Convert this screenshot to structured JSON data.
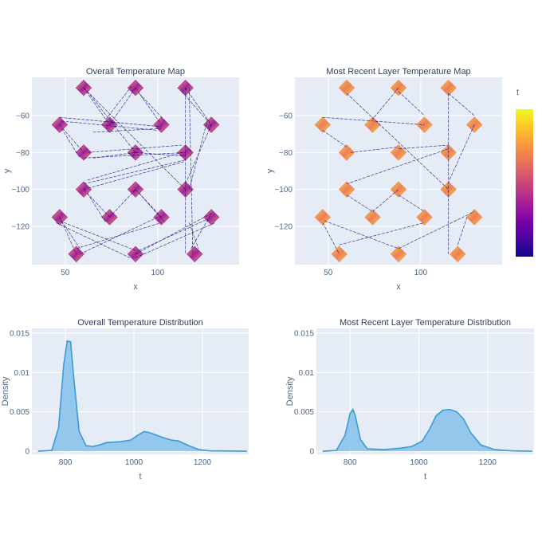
{
  "colors": {
    "plot_bg": "#e5ecf6",
    "grid": "#ffffff",
    "line": "#0d0887",
    "kde": "#3a9bd6",
    "kde_fill": "#85c1e9",
    "colorscale": [
      "#0d0887",
      "#46039f",
      "#7201a8",
      "#9c179e",
      "#bd3786",
      "#d8576b",
      "#ed7953",
      "#fb9f3a",
      "#fdca26",
      "#f0f921"
    ]
  },
  "chart_data": [
    {
      "type": "scatter",
      "title": "Overall Temperature Map",
      "xlabel": "x",
      "ylabel": "y",
      "xlim": [
        32,
        144
      ],
      "ylim": [
        -140.7,
        -39.3
      ],
      "xticks": [
        50,
        100
      ],
      "xtick_labels": [
        "50",
        "100"
      ],
      "yticks": [
        -60,
        -80,
        -100,
        -120
      ],
      "ytick_labels": [
        "−60",
        "−80",
        "−100",
        "−120"
      ],
      "grid": true,
      "color_range": [
        "#9c179e",
        "#fb9f3a"
      ],
      "pads": [
        [
          60,
          -45
        ],
        [
          88,
          -45
        ],
        [
          115,
          -45
        ],
        [
          47,
          -65
        ],
        [
          74,
          -65
        ],
        [
          102,
          -65
        ],
        [
          129,
          -65
        ],
        [
          60,
          -80
        ],
        [
          88,
          -80
        ],
        [
          115,
          -80
        ],
        [
          60,
          -100
        ],
        [
          88,
          -100
        ],
        [
          115,
          -100
        ],
        [
          47,
          -115
        ],
        [
          74,
          -115
        ],
        [
          102,
          -115
        ],
        [
          129,
          -115
        ],
        [
          56,
          -135
        ],
        [
          88,
          -135
        ],
        [
          120,
          -135
        ]
      ],
      "segments": [
        [
          60,
          -45,
          74,
          -65
        ],
        [
          60,
          -45,
          115,
          -100
        ],
        [
          62,
          -47,
          88,
          -80
        ],
        [
          88,
          -45,
          74,
          -65
        ],
        [
          86,
          -44,
          72,
          -62
        ],
        [
          88,
          -45,
          102,
          -65
        ],
        [
          90,
          -48,
          104,
          -63
        ],
        [
          115,
          -45,
          115,
          -135
        ],
        [
          117,
          -45,
          119,
          -135
        ],
        [
          115,
          -45,
          129,
          -65
        ],
        [
          113,
          -47,
          127,
          -63
        ],
        [
          47,
          -61,
          102,
          -66
        ],
        [
          48,
          -63,
          100,
          -68
        ],
        [
          65,
          -69,
          102,
          -67
        ],
        [
          47,
          -65,
          60,
          -80
        ],
        [
          48,
          -67,
          58,
          -83
        ],
        [
          60,
          -83,
          115,
          -80
        ],
        [
          62,
          -80,
          113,
          -76
        ],
        [
          65,
          -83,
          88,
          -80
        ],
        [
          88,
          -80,
          115,
          -82
        ],
        [
          60,
          -97,
          115,
          -84
        ],
        [
          62,
          -95,
          113,
          -80
        ],
        [
          60,
          -100,
          114,
          -85
        ],
        [
          129,
          -65,
          115,
          -97
        ],
        [
          127,
          -62,
          117,
          -100
        ],
        [
          60,
          -100,
          74,
          -115
        ],
        [
          62,
          -102,
          72,
          -118
        ],
        [
          88,
          -100,
          74,
          -115
        ],
        [
          88,
          -100,
          102,
          -115
        ],
        [
          90,
          -102,
          104,
          -118
        ],
        [
          47,
          -115,
          56,
          -135
        ],
        [
          48,
          -117,
          58,
          -132
        ],
        [
          47,
          -117,
          88,
          -133
        ],
        [
          45,
          -118,
          85,
          -137
        ],
        [
          56,
          -132,
          102,
          -118
        ],
        [
          58,
          -135,
          100,
          -115
        ],
        [
          88,
          -135,
          129,
          -113
        ],
        [
          90,
          -133,
          127,
          -116
        ],
        [
          88,
          -137,
          131,
          -118
        ],
        [
          118,
          -132,
          129,
          -113
        ],
        [
          117,
          -118,
          122,
          -132
        ]
      ]
    },
    {
      "type": "scatter",
      "title": "Most Recent Layer Temperature Map",
      "xlabel": "x",
      "ylabel": "y",
      "xlim": [
        32,
        144
      ],
      "ylim": [
        -140.7,
        -39.3
      ],
      "xticks": [
        50,
        100
      ],
      "xtick_labels": [
        "50",
        "100"
      ],
      "yticks": [
        -60,
        -80,
        -100,
        -120
      ],
      "ytick_labels": [
        "−60",
        "−80",
        "−100",
        "−120"
      ],
      "grid": true,
      "color_range": [
        "#ed7953",
        "#fdca26"
      ],
      "pads": [
        [
          60,
          -45
        ],
        [
          88,
          -45
        ],
        [
          115,
          -45
        ],
        [
          47,
          -65
        ],
        [
          74,
          -65
        ],
        [
          102,
          -65
        ],
        [
          129,
          -65
        ],
        [
          60,
          -80
        ],
        [
          88,
          -80
        ],
        [
          115,
          -80
        ],
        [
          60,
          -100
        ],
        [
          88,
          -100
        ],
        [
          115,
          -100
        ],
        [
          47,
          -115
        ],
        [
          74,
          -115
        ],
        [
          102,
          -115
        ],
        [
          129,
          -115
        ],
        [
          56,
          -135
        ],
        [
          88,
          -135
        ],
        [
          120,
          -135
        ]
      ],
      "segments": [
        [
          47,
          -61,
          102,
          -65
        ],
        [
          60,
          -48,
          115,
          -100
        ],
        [
          88,
          -45,
          74,
          -62
        ],
        [
          88,
          -47,
          102,
          -60
        ],
        [
          115,
          -48,
          115,
          -135
        ],
        [
          115,
          -48,
          129,
          -60
        ],
        [
          129,
          -65,
          115,
          -96
        ],
        [
          47,
          -68,
          60,
          -77
        ],
        [
          62,
          -80,
          88,
          -77
        ],
        [
          88,
          -78,
          115,
          -76
        ],
        [
          115,
          -78,
          60,
          -97
        ],
        [
          60,
          -103,
          74,
          -112
        ],
        [
          74,
          -112,
          88,
          -100
        ],
        [
          88,
          -103,
          102,
          -112
        ],
        [
          47,
          -118,
          56,
          -135
        ],
        [
          48,
          -117,
          88,
          -132
        ],
        [
          56,
          -130,
          102,
          -118
        ],
        [
          88,
          -132,
          129,
          -112
        ],
        [
          120,
          -130,
          125,
          -115
        ]
      ],
      "colorbar": {
        "title": "t"
      }
    },
    {
      "type": "area",
      "title": "Overall Temperature Distribution",
      "xlabel": "t",
      "ylabel": "Density",
      "xlim": [
        702,
        1335
      ],
      "ylim": [
        -0.0004,
        0.0156
      ],
      "xticks": [
        800,
        1000,
        1200
      ],
      "xtick_labels": [
        "800",
        "1000",
        "1200"
      ],
      "yticks": [
        0,
        0.005,
        0.01,
        0.015
      ],
      "ytick_labels": [
        "0",
        "0.005",
        "0.01",
        "0.015"
      ],
      "grid": true,
      "x": [
        720,
        760,
        780,
        795,
        805,
        815,
        825,
        840,
        860,
        880,
        900,
        920,
        960,
        990,
        1010,
        1030,
        1050,
        1080,
        1110,
        1130,
        1160,
        1190,
        1220,
        1330
      ],
      "y": [
        0,
        0.0001,
        0.003,
        0.011,
        0.014,
        0.0139,
        0.009,
        0.0025,
        0.0007,
        0.0006,
        0.0008,
        0.0011,
        0.0012,
        0.0014,
        0.002,
        0.0025,
        0.0023,
        0.0018,
        0.0014,
        0.0013,
        0.0007,
        0.0002,
        5e-05,
        0
      ]
    },
    {
      "type": "area",
      "title": "Most Recent Layer Temperature Distribution",
      "xlabel": "t",
      "ylabel": "Density",
      "xlim": [
        702,
        1335
      ],
      "ylim": [
        -0.0004,
        0.0156
      ],
      "xticks": [
        800,
        1000,
        1200
      ],
      "xtick_labels": [
        "800",
        "1000",
        "1200"
      ],
      "yticks": [
        0,
        0.005,
        0.01,
        0.015
      ],
      "ytick_labels": [
        "0",
        "0.005",
        "0.01",
        "0.015"
      ],
      "grid": true,
      "x": [
        720,
        760,
        785,
        800,
        808,
        815,
        830,
        850,
        900,
        950,
        980,
        1010,
        1030,
        1050,
        1070,
        1090,
        1110,
        1130,
        1150,
        1180,
        1220,
        1270,
        1330
      ],
      "y": [
        0,
        0.0001,
        0.002,
        0.0048,
        0.0053,
        0.0045,
        0.0015,
        0.0003,
        0.0002,
        0.0004,
        0.0006,
        0.0013,
        0.0027,
        0.0045,
        0.0052,
        0.0053,
        0.005,
        0.0041,
        0.0024,
        0.0008,
        0.0002,
        5e-05,
        0
      ]
    }
  ]
}
